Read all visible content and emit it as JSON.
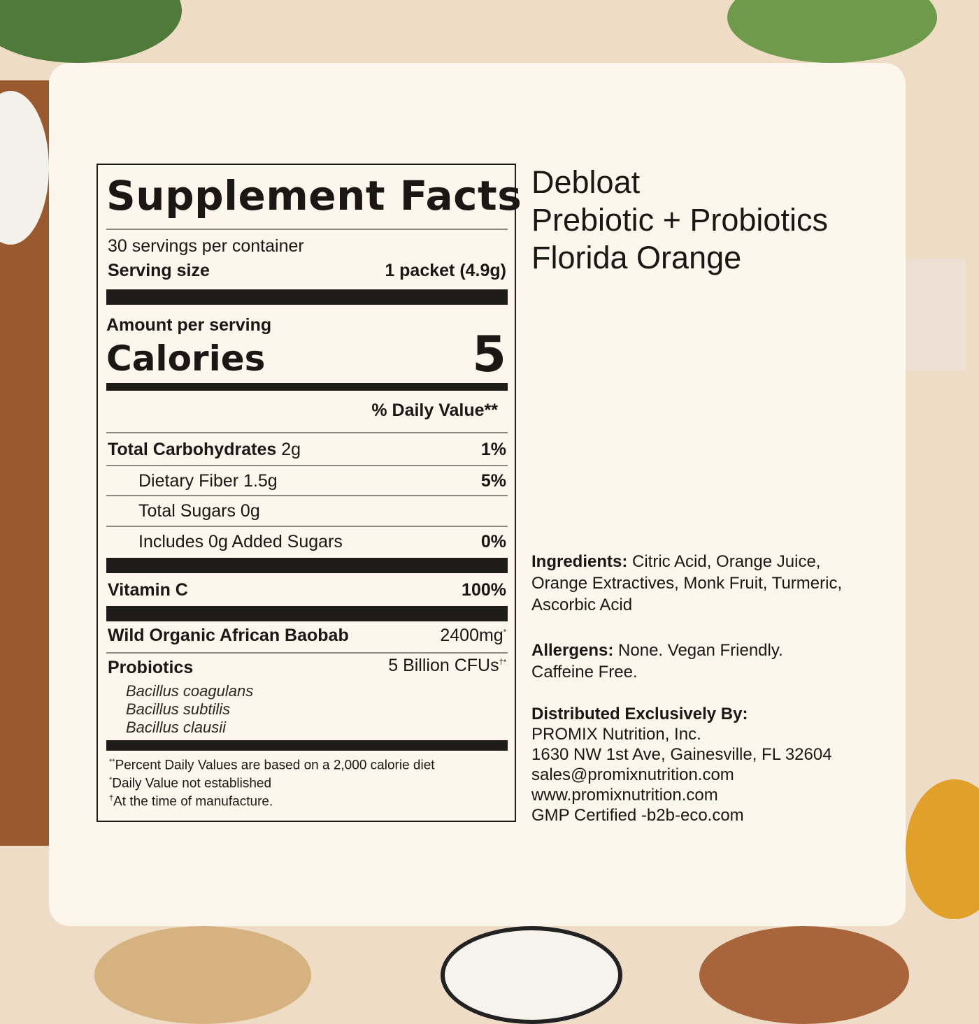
{
  "facts": {
    "title": "Supplement Facts",
    "servings": "30 servings per container",
    "serving_size_label": "Serving size",
    "serving_size_value": "1 packet (4.9g)",
    "amount_per_serving": "Amount per serving",
    "calories_label": "Calories",
    "calories_value": "5",
    "dv_header": "% Daily Value**",
    "rows": [
      {
        "label": "Total Carbohydrates",
        "amount": "2g",
        "dv": "1%"
      },
      {
        "label": "Dietary Fiber",
        "amount": "1.5g",
        "dv": "5%"
      },
      {
        "label": "Total Sugars",
        "amount": "0g",
        "dv": ""
      },
      {
        "label": "Includes 0g Added Sugars",
        "amount": "",
        "dv": "0%"
      },
      {
        "label": "Vitamin C",
        "amount": "",
        "dv": "100%"
      },
      {
        "label": "Wild Organic African Baobab",
        "amount": "2400mg",
        "mark": "*"
      },
      {
        "label": "Probiotics",
        "amount": "5 Billion CFUs",
        "mark": "†*"
      }
    ],
    "species": [
      "Bacillus coagulans",
      "Bacillus subtilis",
      "Bacillus clausii"
    ],
    "footnotes": [
      {
        "mark": "**",
        "text": "Percent Daily Values are based on a 2,000 calorie diet"
      },
      {
        "mark": "*",
        "text": "Daily Value not established"
      },
      {
        "mark": "†",
        "text": "At the time of manufacture."
      }
    ]
  },
  "product": {
    "line1": "Debloat",
    "line2": "Prebiotic + Probiotics",
    "line3": "Florida Orange"
  },
  "ingredients": {
    "label": "Ingredients:",
    "text": "Citric Acid, Orange Juice, Orange Extractives, Monk Fruit, Turmeric, Ascorbic Acid"
  },
  "allergens": {
    "label": "Allergens:",
    "text": "None. Vegan Friendly. Caffeine Free."
  },
  "distributor": {
    "label": "Distributed Exclusively By:",
    "lines": [
      "PROMIX Nutrition, Inc.",
      "1630 NW 1st Ave, Gainesville, FL 32604",
      "sales@promixnutrition.com",
      "www.promixnutrition.com",
      "GMP Certified -b2b-eco.com"
    ]
  }
}
